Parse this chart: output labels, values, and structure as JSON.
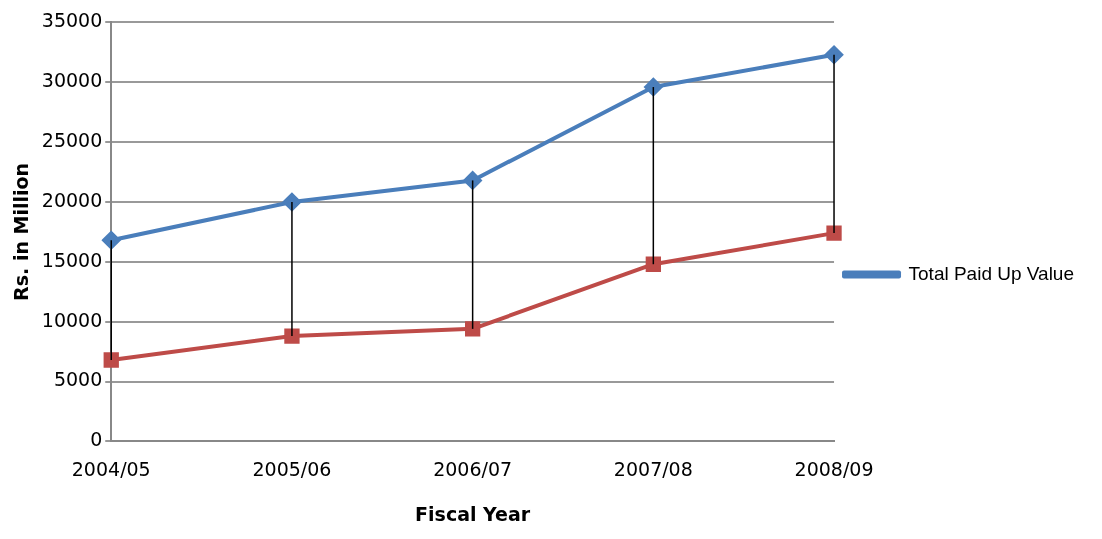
{
  "chart_data": {
    "type": "line",
    "xlabel": "Fiscal Year",
    "ylabel": "Rs. in Million",
    "categories": [
      "2004/05",
      "2005/06",
      "2006/07",
      "2007/08",
      "2008/09"
    ],
    "series": [
      {
        "name": "Total Paid Up Value",
        "color": "#4a7ebb",
        "marker": "diamond",
        "values": [
          16800,
          20000,
          21800,
          29600,
          32300
        ],
        "errors": [
          [
            6800,
            16800
          ],
          [
            8800,
            20000
          ],
          [
            9400,
            21800
          ],
          [
            14800,
            29600
          ],
          [
            17400,
            32300
          ]
        ]
      },
      {
        "color": "#be4b48",
        "marker": "square",
        "values": [
          6800,
          8800,
          9400,
          14800,
          17400
        ]
      }
    ],
    "ylim": [
      0,
      35000
    ],
    "yticks": [
      0,
      5000,
      10000,
      15000,
      20000,
      25000,
      30000,
      35000
    ],
    "grid": "y",
    "legend": "right"
  }
}
